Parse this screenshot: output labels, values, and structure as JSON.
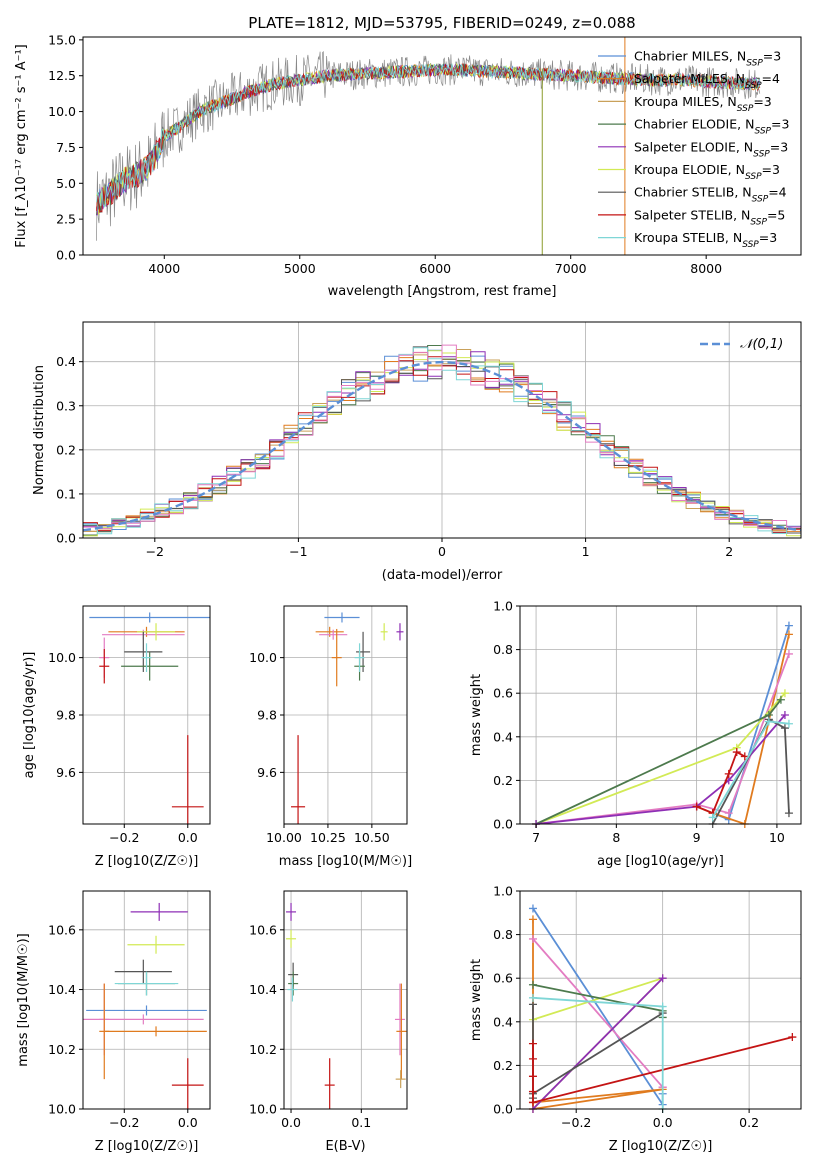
{
  "colors": {
    "chabrier_miles": "#5b8fd6",
    "salpeter_miles": "#e07b1f",
    "kroupa_miles": "#c9a15a",
    "chabrier_elodie": "#4d7a4d",
    "salpeter_elodie": "#8e2fb5",
    "kroupa_elodie": "#d2ea55",
    "chabrier_stelib": "#555555",
    "salpeter_stelib": "#c41414",
    "kroupa_stelib": "#7fd6d6",
    "pink": "#e37cc2",
    "normal": "#5b8fd6",
    "spectrum": "#888888",
    "grid": "#b0b0b0"
  },
  "chart_data": [
    {
      "id": "spectrum",
      "type": "line",
      "title": "PLATE=1812, MJD=53795, FIBERID=0249, z=0.088",
      "xlabel": "wavelength [Angstrom, rest frame]",
      "ylabel": "Flux [f_λ10⁻¹⁷ erg cm⁻² s⁻¹ A⁻¹]",
      "xlim": [
        3400,
        8700
      ],
      "ylim": [
        0,
        15.2
      ],
      "xticks": [
        "4000",
        "5000",
        "6000",
        "7000",
        "8000"
      ],
      "yticks": [
        "0.0",
        "2.5",
        "5.0",
        "7.5",
        "10.0",
        "12.5",
        "15.0"
      ],
      "grid": false,
      "legend_position": "top-right",
      "legend": [
        "Chabrier MILES, N_SSP=3",
        "Salpeter MILES, N_SSP=4",
        "Kroupa MILES, N_SSP=3",
        "Chabrier ELODIE, N_SSP=3",
        "Salpeter ELODIE, N_SSP=3",
        "Kroupa ELODIE, N_SSP=3",
        "Chabrier STELIB, N_SSP=4",
        "Salpeter STELIB, N_SSP=5",
        "Kroupa STELIB, N_SSP=3"
      ],
      "envelope": {
        "x": [
          3500,
          3600,
          3700,
          3800,
          3900,
          4000,
          4100,
          4200,
          4300,
          4400,
          4600,
          4800,
          5000,
          5200,
          5400,
          5600,
          5800,
          6000,
          6200,
          6400,
          6600,
          6800,
          7000,
          7200,
          7400,
          7600,
          7800,
          8000,
          8200,
          8400
        ],
        "y": [
          3.6,
          4.3,
          5.2,
          5.6,
          6.3,
          8.3,
          8.8,
          9.6,
          10.2,
          10.5,
          11.3,
          11.9,
          12.2,
          12.5,
          12.6,
          12.7,
          12.8,
          12.9,
          12.9,
          12.8,
          12.7,
          12.6,
          12.5,
          12.4,
          12.3,
          12.2,
          12.2,
          12.1,
          12.0,
          11.9
        ]
      },
      "spikes_x": [
        6790,
        7400
      ]
    },
    {
      "id": "residuals",
      "type": "step",
      "xlabel": "(data-model)/error",
      "ylabel": "Normed distribution",
      "xlim": [
        -2.5,
        2.5
      ],
      "ylim": [
        0,
        0.49
      ],
      "xticks": [
        "−2",
        "−1",
        "0",
        "1",
        "2"
      ],
      "yticks": [
        "0.0",
        "0.1",
        "0.2",
        "0.3",
        "0.4"
      ],
      "grid": true,
      "legend": [
        "𝒩(0,1)"
      ],
      "legend_position": "top-right",
      "bin_width": 0.1,
      "series_colors": [
        "chabrier_miles",
        "salpeter_miles",
        "kroupa_miles",
        "chabrier_elodie",
        "salpeter_elodie",
        "kroupa_elodie",
        "chabrier_stelib",
        "salpeter_stelib",
        "kroupa_stelib",
        "pink"
      ]
    },
    {
      "id": "age_vs_Z",
      "type": "errorbar",
      "xlabel": "Z [log10(Z/Z☉)]",
      "ylabel": "age [log10(age/yr)]",
      "xlim": [
        -0.33,
        0.07
      ],
      "ylim": [
        9.42,
        10.18
      ],
      "xticks": [
        "−0.2",
        "0.0"
      ],
      "yticks": [
        "9.6",
        "9.8",
        "10.0"
      ],
      "grid": true,
      "points": [
        {
          "c": "chabrier_miles",
          "x": -0.12,
          "y": 10.14,
          "xerr": 0.19,
          "yerr": 0.0
        },
        {
          "c": "salpeter_miles",
          "x": -0.13,
          "y": 10.09,
          "xerr": 0.12,
          "yerr": 0.0
        },
        {
          "c": "pink",
          "x": -0.14,
          "y": 10.08,
          "xerr": 0.13,
          "yerr": 0.0
        },
        {
          "c": "kroupa_elodie",
          "x": -0.1,
          "y": 10.09,
          "xerr": 0.06,
          "yerr": 0.03
        },
        {
          "c": "chabrier_stelib",
          "x": -0.14,
          "y": 10.02,
          "xerr": 0.06,
          "yerr": 0.07
        },
        {
          "c": "chabrier_elodie",
          "x": -0.12,
          "y": 9.97,
          "xerr": 0.09,
          "yerr": 0.05
        },
        {
          "c": "kroupa_stelib",
          "x": -0.13,
          "y": 10.0,
          "xerr": 0.0,
          "yerr": 0.05
        },
        {
          "c": "pink",
          "x": -0.263,
          "y": 10.0,
          "xerr": 0.0,
          "yerr": 0.07
        },
        {
          "c": "salpeter_stelib",
          "x": -0.263,
          "y": 9.97,
          "xerr": 0.0,
          "yerr": 0.06
        },
        {
          "c": "salpeter_stelib",
          "x": 0.0,
          "y": 9.48,
          "xerr": 0.05,
          "yerr": 0.25
        }
      ]
    },
    {
      "id": "age_vs_mass",
      "type": "errorbar",
      "xlabel": "mass [log10(M/M☉)]",
      "ylabel": "",
      "xlim": [
        10.0,
        10.7
      ],
      "ylim": [
        9.42,
        10.18
      ],
      "xticks": [
        "10.00",
        "10.25",
        "10.50"
      ],
      "yticks": [
        "9.6",
        "9.8",
        "10.0"
      ],
      "grid": true,
      "points": [
        {
          "c": "chabrier_miles",
          "x": 10.33,
          "y": 10.14,
          "xerr": 0.1,
          "yerr": 0.0
        },
        {
          "c": "salpeter_miles",
          "x": 10.26,
          "y": 10.09,
          "xerr": 0.08,
          "yerr": 0.0
        },
        {
          "c": "pink",
          "x": 10.28,
          "y": 10.08,
          "xerr": 0.08,
          "yerr": 0.0
        },
        {
          "c": "kroupa_elodie",
          "x": 10.57,
          "y": 10.09,
          "xerr": 0.02,
          "yerr": 0.03
        },
        {
          "c": "salpeter_elodie",
          "x": 10.66,
          "y": 10.09,
          "xerr": 0.02,
          "yerr": 0.03
        },
        {
          "c": "chabrier_stelib",
          "x": 10.45,
          "y": 10.02,
          "xerr": 0.04,
          "yerr": 0.07
        },
        {
          "c": "chabrier_elodie",
          "x": 10.43,
          "y": 9.97,
          "xerr": 0.03,
          "yerr": 0.05
        },
        {
          "c": "kroupa_stelib",
          "x": 10.43,
          "y": 10.0,
          "xerr": 0.0,
          "yerr": 0.05
        },
        {
          "c": "salpeter_miles",
          "x": 10.3,
          "y": 10.0,
          "xerr": 0.0,
          "yerr": 0.1
        },
        {
          "c": "salpeter_stelib",
          "x": 10.08,
          "y": 9.48,
          "xerr": 0.04,
          "yerr": 0.25
        }
      ]
    },
    {
      "id": "weight_vs_age",
      "type": "line",
      "xlabel": "age [log10(age/yr)]",
      "ylabel": "mass weight",
      "xlim": [
        6.8,
        10.3
      ],
      "ylim": [
        0,
        1.0
      ],
      "xticks": [
        "7",
        "8",
        "9",
        "10"
      ],
      "yticks": [
        "0.0",
        "0.2",
        "0.4",
        "0.6",
        "0.8",
        "1.0"
      ],
      "grid": true,
      "series": [
        {
          "c": "chabrier_miles",
          "x": [
            9.0,
            9.4,
            10.15
          ],
          "y": [
            0.08,
            0.02,
            0.91
          ]
        },
        {
          "c": "salpeter_miles",
          "x": [
            9.0,
            9.2,
            9.6,
            10.15
          ],
          "y": [
            0.08,
            0.05,
            0.0,
            0.87
          ]
        },
        {
          "c": "pink",
          "x": [
            7.0,
            9.0,
            9.4,
            10.15
          ],
          "y": [
            0.0,
            0.09,
            0.05,
            0.78
          ]
        },
        {
          "c": "kroupa_elodie",
          "x": [
            7.0,
            9.5,
            10.1
          ],
          "y": [
            0.0,
            0.35,
            0.6
          ]
        },
        {
          "c": "chabrier_elodie",
          "x": [
            7.0,
            9.9,
            10.05
          ],
          "y": [
            0.0,
            0.5,
            0.57
          ]
        },
        {
          "c": "salpeter_elodie",
          "x": [
            7.0,
            9.0,
            9.4,
            10.1
          ],
          "y": [
            0.0,
            0.08,
            0.2,
            0.5
          ]
        },
        {
          "c": "chabrier_stelib",
          "x": [
            9.2,
            9.9,
            10.1,
            10.15
          ],
          "y": [
            0.0,
            0.48,
            0.44,
            0.05
          ]
        },
        {
          "c": "salpeter_stelib",
          "x": [
            9.0,
            9.2,
            9.4,
            9.5,
            9.6
          ],
          "y": [
            0.08,
            0.05,
            0.23,
            0.33,
            0.31
          ]
        },
        {
          "c": "kroupa_stelib",
          "x": [
            9.2,
            9.9,
            10.15
          ],
          "y": [
            0.03,
            0.47,
            0.46
          ]
        }
      ]
    },
    {
      "id": "mass_vs_Z",
      "type": "errorbar",
      "xlabel": "Z [log10(Z/Z☉)]",
      "ylabel": "mass [log10(M/M☉)]",
      "xlim": [
        -0.33,
        0.07
      ],
      "ylim": [
        10.0,
        10.73
      ],
      "xticks": [
        "−0.2",
        "0.0"
      ],
      "yticks": [
        "10.0",
        "10.2",
        "10.4",
        "10.6"
      ],
      "grid": true,
      "points": [
        {
          "c": "salpeter_elodie",
          "x": -0.09,
          "y": 10.66,
          "xerr": 0.09,
          "yerr": 0.03
        },
        {
          "c": "kroupa_elodie",
          "x": -0.1,
          "y": 10.55,
          "xerr": 0.09,
          "yerr": 0.03
        },
        {
          "c": "chabrier_stelib",
          "x": -0.14,
          "y": 10.46,
          "xerr": 0.09,
          "yerr": 0.04
        },
        {
          "c": "chabrier_elodie",
          "x": -0.13,
          "y": 10.42,
          "xerr": 0.09,
          "yerr": 0.04
        },
        {
          "c": "kroupa_stelib",
          "x": -0.13,
          "y": 10.42,
          "xerr": 0.1,
          "yerr": 0.04
        },
        {
          "c": "chabrier_miles",
          "x": -0.13,
          "y": 10.33,
          "xerr": 0.19,
          "yerr": 0.0
        },
        {
          "c": "pink",
          "x": -0.14,
          "y": 10.3,
          "xerr": 0.19,
          "yerr": 0.0
        },
        {
          "c": "salpeter_miles",
          "x": -0.1,
          "y": 10.26,
          "xerr": 0.16,
          "yerr": 0.0
        },
        {
          "c": "pink",
          "x": -0.263,
          "y": 10.3,
          "xerr": 0.0,
          "yerr": 0.12
        },
        {
          "c": "salpeter_miles",
          "x": -0.263,
          "y": 10.26,
          "xerr": 0.0,
          "yerr": 0.16
        },
        {
          "c": "salpeter_stelib",
          "x": 0.0,
          "y": 10.08,
          "xerr": 0.05,
          "yerr": 0.09
        }
      ]
    },
    {
      "id": "mass_vs_ebv",
      "type": "errorbar",
      "xlabel": "E(B-V)",
      "ylabel": "",
      "xlim": [
        -0.01,
        0.165
      ],
      "ylim": [
        10.0,
        10.73
      ],
      "xticks": [
        "0.0",
        "0.1"
      ],
      "yticks": [
        "10.0",
        "10.2",
        "10.4",
        "10.6"
      ],
      "grid": true,
      "points": [
        {
          "c": "salpeter_elodie",
          "x": 0.0,
          "y": 10.66,
          "xerr": 0.0,
          "yerr": 0.03
        },
        {
          "c": "kroupa_elodie",
          "x": 0.0,
          "y": 10.57,
          "xerr": 0.0,
          "yerr": 0.03
        },
        {
          "c": "chabrier_stelib",
          "x": 0.003,
          "y": 10.45,
          "xerr": 0.0,
          "yerr": 0.04
        },
        {
          "c": "chabrier_elodie",
          "x": 0.003,
          "y": 10.42,
          "xerr": 0.0,
          "yerr": 0.04
        },
        {
          "c": "kroupa_stelib",
          "x": 0.002,
          "y": 10.4,
          "xerr": 0.0,
          "yerr": 0.04
        },
        {
          "c": "salpeter_stelib",
          "x": 0.055,
          "y": 10.08,
          "xerr": 0.0,
          "yerr": 0.09
        },
        {
          "c": "pink",
          "x": 0.155,
          "y": 10.3,
          "xerr": 0.0,
          "yerr": 0.12
        },
        {
          "c": "salpeter_miles",
          "x": 0.157,
          "y": 10.26,
          "xerr": 0.0,
          "yerr": 0.16
        },
        {
          "c": "kroupa_miles",
          "x": 0.156,
          "y": 10.1,
          "xerr": 0.0,
          "yerr": 0.03
        }
      ]
    },
    {
      "id": "weight_vs_Z",
      "type": "line",
      "xlabel": "Z [log10(Z/Z☉)]",
      "ylabel": "mass weight",
      "xlim": [
        -0.33,
        0.32
      ],
      "ylim": [
        0,
        1.0
      ],
      "xticks": [
        "−0.2",
        "0.0",
        "0.2"
      ],
      "yticks": [
        "0.0",
        "0.2",
        "0.4",
        "0.6",
        "0.8",
        "1.0"
      ],
      "grid": true,
      "series": [
        {
          "c": "chabrier_miles",
          "x": [
            -0.3,
            0.0,
            0.0
          ],
          "y": [
            0.92,
            0.02,
            0.07
          ]
        },
        {
          "c": "salpeter_miles",
          "x": [
            -0.3,
            -0.3,
            0.0,
            -0.3
          ],
          "y": [
            0.87,
            0.0,
            0.09,
            0.03
          ]
        },
        {
          "c": "pink",
          "x": [
            -0.3,
            0.0,
            0.0
          ],
          "y": [
            0.78,
            0.1,
            0.1
          ]
        },
        {
          "c": "kroupa_elodie",
          "x": [
            -0.3,
            0.0,
            -0.3
          ],
          "y": [
            0.41,
            0.6,
            0.0
          ]
        },
        {
          "c": "chabrier_elodie",
          "x": [
            -0.3,
            0.0,
            0.0
          ],
          "y": [
            0.57,
            0.45,
            0.42
          ]
        },
        {
          "c": "salpeter_elodie",
          "x": [
            -0.3,
            0.0
          ],
          "y": [
            0.0,
            0.6
          ]
        },
        {
          "c": "chabrier_stelib",
          "x": [
            -0.3,
            -0.3,
            -0.3,
            0.0
          ],
          "y": [
            0.48,
            0.05,
            0.07,
            0.44
          ]
        },
        {
          "c": "salpeter_stelib",
          "x": [
            -0.3,
            -0.3,
            -0.3,
            -0.3,
            -0.3,
            0.3
          ],
          "y": [
            0.3,
            0.23,
            0.15,
            0.08,
            0.03,
            0.33
          ]
        },
        {
          "c": "kroupa_stelib",
          "x": [
            -0.3,
            0.0,
            0.0
          ],
          "y": [
            0.51,
            0.47,
            0.0
          ]
        }
      ]
    }
  ]
}
